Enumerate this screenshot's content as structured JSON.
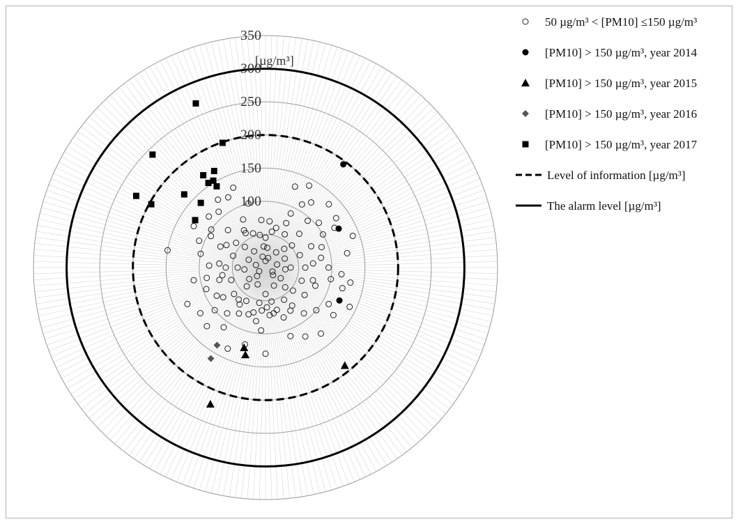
{
  "chart_data": {
    "type": "scatter",
    "subtype": "polar",
    "title": "",
    "unit_label": "[µg/m³]",
    "radial_ticks": [
      "100",
      "150",
      "200",
      "250",
      "300",
      "350"
    ],
    "rlim": [
      0,
      350
    ],
    "grid": true,
    "reference_circles": [
      {
        "name": "Level of information  [µg/m³]",
        "value": 200,
        "style": "dashed"
      },
      {
        "name": "The alarm level [µg/m³]",
        "value": 300,
        "style": "solid"
      }
    ],
    "legend_position": "top-right",
    "legend": [
      "50 µg/m³ < [PM10] ≤150 µg/m³",
      "[PM10] > 150 µg/m³, year 2014",
      "[PM10] > 150 µg/m³, year 2015",
      "[PM10] > 150 µg/m³, year 2016",
      "[PM10] > 150 µg/m³, year 2017",
      "Level of information  [µg/m³]",
      "The alarm level [µg/m³]"
    ],
    "series": [
      {
        "name": "50 µg/m³ < [PM10] ≤150 µg/m³",
        "marker": "circle-open",
        "points": [
          [
            -15,
            100
          ],
          [
            -22,
            130
          ],
          [
            -28,
            120
          ],
          [
            -35,
            125
          ],
          [
            -40,
            110
          ],
          [
            -48,
            115
          ],
          [
            -55,
            100
          ],
          [
            -60,
            95
          ],
          [
            -68,
            108
          ],
          [
            -78,
            100
          ],
          [
            -88,
            85
          ],
          [
            -100,
            90
          ],
          [
            -110,
            95
          ],
          [
            -120,
            85
          ],
          [
            -130,
            100
          ],
          [
            -140,
            90
          ],
          [
            -150,
            80
          ],
          [
            -160,
            75
          ],
          [
            -170,
            82
          ],
          [
            -176,
            95
          ],
          [
            20,
            130
          ],
          [
            28,
            140
          ],
          [
            35,
            120
          ],
          [
            42,
            95
          ],
          [
            50,
            105
          ],
          [
            60,
            100
          ],
          [
            70,
            90
          ],
          [
            80,
            85
          ],
          [
            90,
            95
          ],
          [
            100,
            100
          ],
          [
            110,
            80
          ],
          [
            120,
            110
          ],
          [
            130,
            100
          ],
          [
            140,
            90
          ],
          [
            150,
            75
          ],
          [
            160,
            80
          ],
          [
            170,
            70
          ],
          [
            178,
            60
          ],
          [
            -10,
            50
          ],
          [
            -20,
            55
          ],
          [
            -30,
            60
          ],
          [
            -50,
            58
          ],
          [
            -70,
            52
          ],
          [
            -90,
            60
          ],
          [
            -110,
            55
          ],
          [
            -130,
            62
          ],
          [
            -150,
            58
          ],
          [
            -170,
            54
          ],
          [
            10,
            55
          ],
          [
            30,
            58
          ],
          [
            50,
            52
          ],
          [
            70,
            55
          ],
          [
            90,
            60
          ],
          [
            110,
            58
          ],
          [
            130,
            54
          ],
          [
            150,
            56
          ],
          [
            170,
            52
          ],
          [
            0,
            45
          ],
          [
            45,
            40
          ],
          [
            90,
            38
          ],
          [
            135,
            42
          ],
          [
            180,
            40
          ],
          [
            -45,
            44
          ],
          [
            -90,
            42
          ],
          [
            -135,
            40
          ],
          [
            5,
            30
          ],
          [
            35,
            28
          ],
          [
            65,
            32
          ],
          [
            95,
            30
          ],
          [
            125,
            28
          ],
          [
            155,
            30
          ],
          [
            -5,
            32
          ],
          [
            -35,
            30
          ],
          [
            -65,
            28
          ],
          [
            -95,
            32
          ],
          [
            -125,
            30
          ],
          [
            -155,
            28
          ],
          [
            15,
            15
          ],
          [
            75,
            18
          ],
          [
            135,
            16
          ],
          [
            -15,
            17
          ],
          [
            -75,
            15
          ],
          [
            -135,
            18
          ],
          [
            0,
            10
          ],
          [
            120,
            12
          ],
          [
            -120,
            11
          ],
          [
            -80,
            150
          ],
          [
            -60,
            125
          ],
          [
            -100,
            110
          ],
          [
            -115,
            130
          ],
          [
            -125,
            120
          ],
          [
            -135,
            125
          ],
          [
            -145,
            110
          ],
          [
            -155,
            135
          ],
          [
            -165,
            120
          ],
          [
            -180,
            130
          ],
          [
            150,
            120
          ],
          [
            160,
            110
          ],
          [
            140,
            130
          ],
          [
            125,
            125
          ],
          [
            115,
            140
          ],
          [
            100,
            130
          ],
          [
            95,
            115
          ],
          [
            105,
            120
          ],
          [
            60,
            120
          ],
          [
            55,
            130
          ],
          [
            70,
            140
          ],
          [
            80,
            125
          ],
          [
            45,
            135
          ],
          [
            30,
            110
          ],
          [
            25,
            90
          ],
          [
            -25,
            80
          ],
          [
            -45,
            80
          ],
          [
            -65,
            75
          ],
          [
            -85,
            70
          ],
          [
            -105,
            72
          ],
          [
            -125,
            78
          ],
          [
            -145,
            68
          ],
          [
            -165,
            70
          ],
          [
            -175,
            65
          ],
          [
            175,
            72
          ],
          [
            165,
            66
          ],
          [
            145,
            70
          ],
          [
            125,
            72
          ],
          [
            105,
            74
          ],
          [
            85,
            72
          ],
          [
            65,
            76
          ],
          [
            45,
            72
          ],
          [
            25,
            74
          ],
          [
            5,
            70
          ],
          [
            -5,
            72
          ],
          [
            15,
            62
          ],
          [
            -30,
            65
          ],
          [
            -60,
            68
          ],
          [
            -100,
            66
          ],
          [
            -140,
            63
          ]
        ]
      },
      {
        "name": "[PM10] > 150 µg/m³, year 2014",
        "marker": "circle",
        "points": [
          [
            37,
            195
          ],
          [
            62,
            125
          ],
          [
            114,
            122
          ]
        ]
      },
      {
        "name": "[PM10] > 150 µg/m³, year 2015",
        "marker": "triangle",
        "points": [
          [
            -165,
            125
          ],
          [
            -167,
            135
          ],
          [
            -158,
            222
          ],
          [
            141,
            190
          ]
        ]
      },
      {
        "name": "[PM10] > 150 µg/m³, year 2016",
        "marker": "diamond",
        "points": [
          [
            -148,
            138
          ],
          [
            -149,
            160
          ]
        ]
      },
      {
        "name": "[PM10] > 150 µg/m³, year 2017",
        "marker": "square",
        "points": [
          [
            -19,
            199
          ],
          [
            -23,
            269
          ],
          [
            -45,
            241
          ],
          [
            -61,
            223
          ],
          [
            -61,
            197
          ],
          [
            -48,
            165
          ],
          [
            -34,
            168
          ],
          [
            -28,
            165
          ],
          [
            -31,
            143
          ],
          [
            -31,
            153
          ],
          [
            -34,
            154
          ],
          [
            -45,
            138
          ],
          [
            -56,
            128
          ]
        ]
      }
    ]
  }
}
